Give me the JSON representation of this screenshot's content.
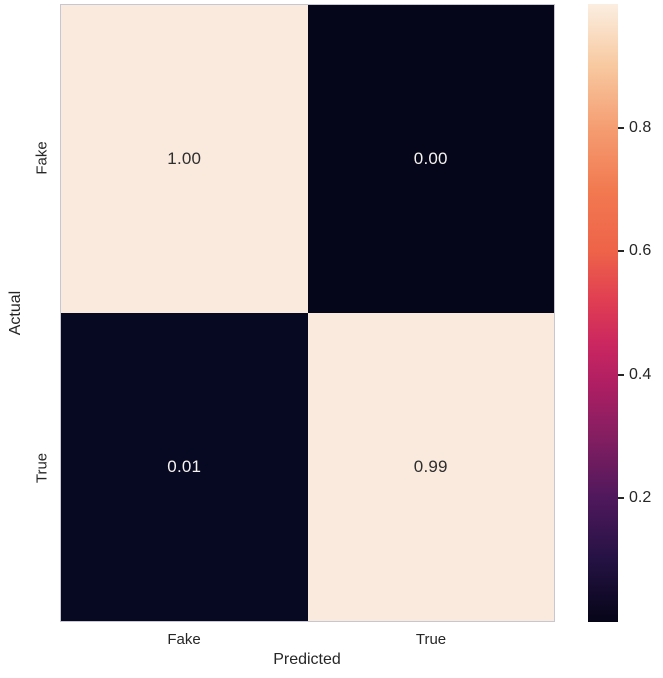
{
  "chart_data": {
    "type": "heatmap",
    "title": "",
    "xlabel": "Predicted",
    "ylabel": "Actual",
    "x_categories": [
      "Fake",
      "True"
    ],
    "y_categories": [
      "Fake",
      "True"
    ],
    "matrix": [
      [
        1.0,
        0.0
      ],
      [
        0.01,
        0.99
      ]
    ],
    "colormap": "rocket",
    "vmin": 0.0,
    "vmax": 1.0,
    "grid": false,
    "cells": [
      {
        "actual": "Fake",
        "predicted": "Fake",
        "value": "1.00",
        "bg": "#faeadd",
        "fg": "#2e2e2e"
      },
      {
        "actual": "Fake",
        "predicted": "True",
        "value": "0.00",
        "bg": "#05061a",
        "fg": "#f5f2ef"
      },
      {
        "actual": "True",
        "predicted": "Fake",
        "value": "0.01",
        "bg": "#070821",
        "fg": "#f5f2ef"
      },
      {
        "actual": "True",
        "predicted": "True",
        "value": "0.99",
        "bg": "#faeadd",
        "fg": "#2e2e2e"
      }
    ],
    "colorbar": {
      "position": "right",
      "ticks": [
        {
          "value": 0.8,
          "label": "0.8"
        },
        {
          "value": 0.6,
          "label": "0.6"
        },
        {
          "value": 0.4,
          "label": "0.4"
        },
        {
          "value": 0.2,
          "label": "0.2"
        }
      ],
      "gradient_stops_top_to_bottom": [
        {
          "pos": 0,
          "color": "#fbeee1"
        },
        {
          "pos": 10,
          "color": "#f8c9a0"
        },
        {
          "pos": 20,
          "color": "#f59d72"
        },
        {
          "pos": 30,
          "color": "#f27a51"
        },
        {
          "pos": 40,
          "color": "#ee6349"
        },
        {
          "pos": 48,
          "color": "#e03e52"
        },
        {
          "pos": 55,
          "color": "#cb2760"
        },
        {
          "pos": 62,
          "color": "#ad1e63"
        },
        {
          "pos": 70,
          "color": "#841e61"
        },
        {
          "pos": 80,
          "color": "#4f185c"
        },
        {
          "pos": 90,
          "color": "#241243"
        },
        {
          "pos": 100,
          "color": "#060518"
        }
      ]
    }
  }
}
